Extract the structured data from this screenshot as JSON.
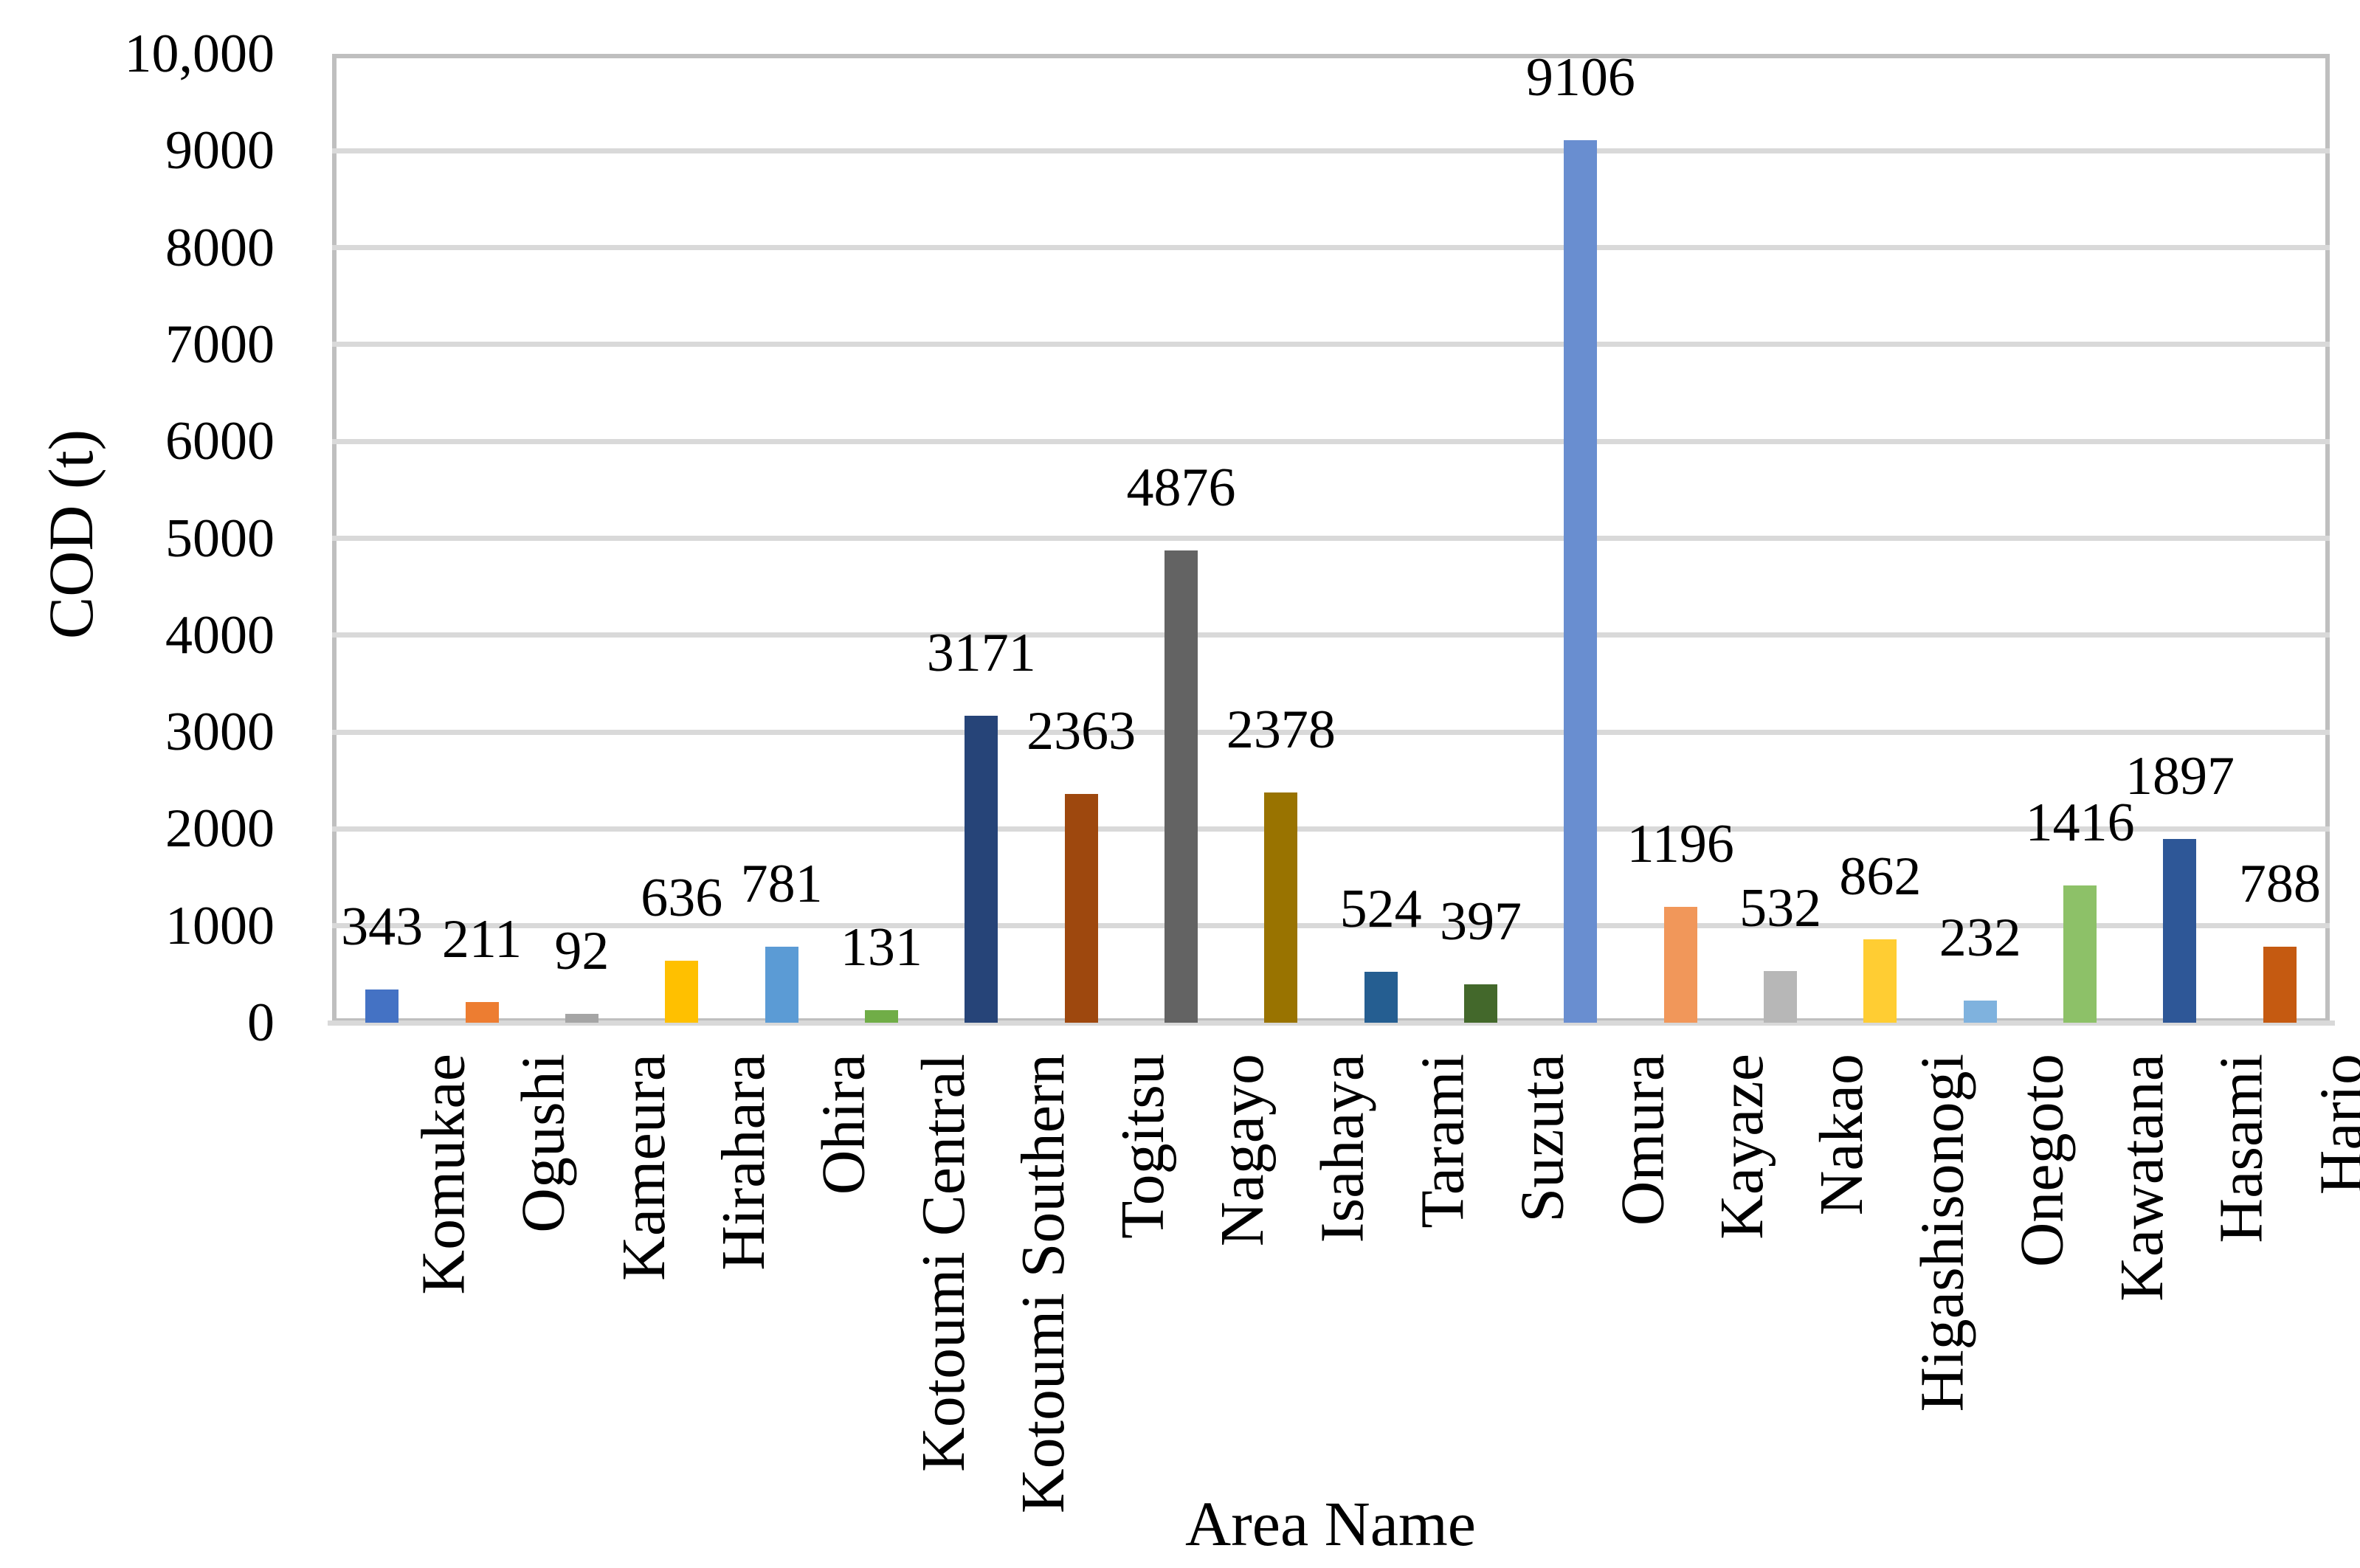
{
  "figure": {
    "background_color": "#FFFFFF",
    "text_color": "#000000",
    "plot_border_color": "#BFBFBF",
    "gridline_color": "#D9D9D9"
  },
  "chart_data": {
    "type": "bar",
    "title": "",
    "xlabel": "Area Name",
    "ylabel": "COD (t)",
    "categories": [
      "Komukae",
      "Ogushi",
      "Kameura",
      "Hirahara",
      "Ohira",
      "Kotoumi Central",
      "Kotoumi Southern",
      "Togitsu",
      "Nagayo",
      "Isahaya",
      "Tarami",
      "Suzuta",
      "Omura",
      "Kayaze",
      "Nakao",
      "Higashisonogi",
      "Onegoto",
      "Kawatana",
      "Hasami",
      "Hario"
    ],
    "values": [
      343,
      211,
      92,
      636,
      781,
      131,
      3171,
      2363,
      4876,
      2378,
      524,
      397,
      9106,
      1196,
      532,
      862,
      232,
      1416,
      1897,
      788
    ],
    "data_labels": [
      "343",
      "211",
      "92",
      "636",
      "781",
      "131",
      "3171",
      "2363",
      "4876",
      "2378",
      "524",
      "397",
      "9106",
      "1196",
      "532",
      "862",
      "232",
      "1416",
      "1897",
      "788"
    ],
    "bar_colors": [
      "#4472C4",
      "#ED7D31",
      "#A5A5A5",
      "#FFC000",
      "#5B9BD5",
      "#70AD47",
      "#264478",
      "#9E480E",
      "#636363",
      "#997300",
      "#255E91",
      "#43682B",
      "#698ED0",
      "#F1975A",
      "#B7B7B7",
      "#FFCD33",
      "#7FB2DE",
      "#8DC168",
      "#2E5797",
      "#C55A11"
    ],
    "y_ticks": [
      {
        "value": 0,
        "label": "0"
      },
      {
        "value": 1000,
        "label": "1000"
      },
      {
        "value": 2000,
        "label": "2000"
      },
      {
        "value": 3000,
        "label": "3000"
      },
      {
        "value": 4000,
        "label": "4000"
      },
      {
        "value": 5000,
        "label": "5000"
      },
      {
        "value": 6000,
        "label": "6000"
      },
      {
        "value": 7000,
        "label": "7000"
      },
      {
        "value": 8000,
        "label": "8000"
      },
      {
        "value": 9000,
        "label": "9000"
      },
      {
        "value": 10000,
        "label": "10,000"
      }
    ],
    "ylim": [
      0,
      10000
    ],
    "grid": "horizontal",
    "legend": "none"
  }
}
